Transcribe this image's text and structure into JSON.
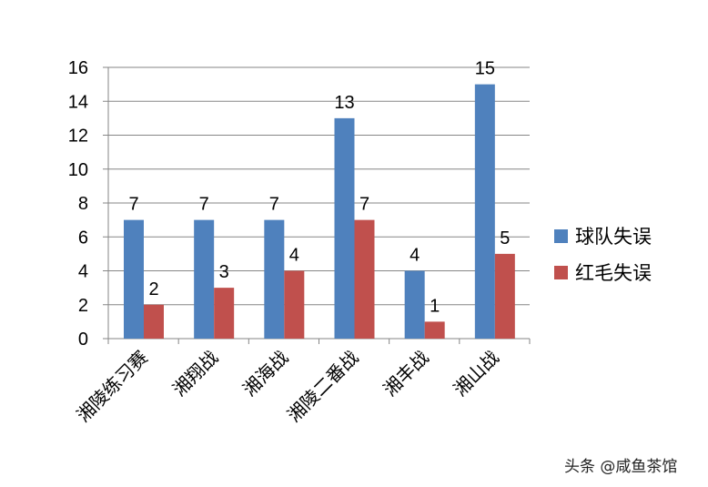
{
  "chart_data": {
    "type": "bar",
    "title": "",
    "xlabel": "",
    "ylabel": "",
    "categories": [
      "湘陵练习赛",
      "湘翔战",
      "湘海战",
      "湘陵二番战",
      "湘丰战",
      "湘山战"
    ],
    "series": [
      {
        "name": "球队失误",
        "values": [
          7,
          7,
          7,
          13,
          4,
          15
        ],
        "color": "#4F81BD"
      },
      {
        "name": "红毛失误",
        "values": [
          2,
          3,
          4,
          7,
          1,
          5
        ],
        "color": "#C0504D"
      }
    ],
    "ylim": [
      0,
      16
    ],
    "yticks": [
      0,
      2,
      4,
      6,
      8,
      10,
      12,
      14,
      16
    ],
    "grid": true,
    "data_labels": true,
    "legend_position": "right"
  },
  "watermark": "头条 @咸鱼茶馆"
}
